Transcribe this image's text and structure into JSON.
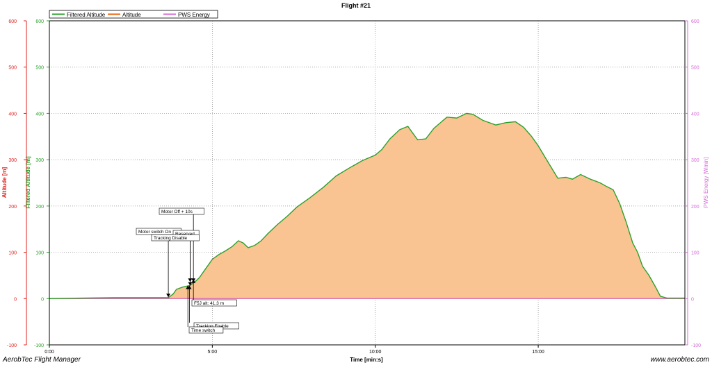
{
  "footer": {
    "left": "AerobTec Flight Manager",
    "right": "www.aerobtec.com"
  },
  "chart_data": {
    "type": "area",
    "title": "Flight #21",
    "xlabel": "Time [min:s]",
    "ylabel_left_outer": "Altitude [m]",
    "ylabel_left_inner": "Filtered Altitude [m]",
    "ylabel_right": "PWS Energy [Wmin]",
    "xlim": [
      0,
      19.5
    ],
    "ylim": [
      -100,
      600
    ],
    "x_ticks": [
      0,
      5,
      10,
      15
    ],
    "x_tick_labels": [
      "0:00",
      "5:00",
      "10:00",
      "15:00"
    ],
    "y_ticks": [
      -100,
      0,
      100,
      200,
      300,
      400,
      500,
      600
    ],
    "y_tick_labels": [
      "-100",
      "0",
      "100",
      "200",
      "300",
      "400",
      "500",
      "600"
    ],
    "grid": true,
    "legend": "top-left",
    "colors": {
      "filtered_altitude": "#2ca02c",
      "altitude": "#e8620a",
      "area_fill": "#f9c491",
      "pws_energy": "#d46bd4",
      "altitude_axis": "#e0201c",
      "filtered_axis": "#2ca02c",
      "pws_axis": "#d46bd4"
    },
    "series": [
      {
        "name": "Filtered Altitude",
        "x": [
          0,
          1,
          2,
          3,
          3.65,
          3.8,
          3.9,
          4.1,
          4.3,
          4.45,
          4.6,
          4.75,
          4.9,
          5.0,
          5.2,
          5.4,
          5.6,
          5.8,
          5.95,
          6.1,
          6.3,
          6.5,
          6.7,
          7.0,
          7.3,
          7.6,
          8.0,
          8.4,
          8.8,
          9.2,
          9.6,
          10.0,
          10.2,
          10.45,
          10.75,
          11.0,
          11.3,
          11.55,
          11.8,
          12.2,
          12.5,
          12.8,
          13.0,
          13.3,
          13.7,
          14.0,
          14.3,
          14.55,
          14.8,
          15.0,
          15.3,
          15.6,
          15.85,
          16.05,
          16.3,
          16.6,
          16.9,
          17.1,
          17.3,
          17.5,
          17.7,
          17.9,
          18.05,
          18.2,
          18.4,
          18.6,
          18.75,
          18.95,
          19.2,
          19.5
        ],
        "values": [
          0,
          1,
          2,
          2,
          2,
          10,
          20,
          25,
          28,
          35,
          45,
          60,
          75,
          85,
          95,
          103,
          112,
          125,
          120,
          110,
          115,
          125,
          140,
          160,
          178,
          198,
          218,
          240,
          265,
          282,
          298,
          310,
          322,
          345,
          365,
          372,
          343,
          345,
          368,
          392,
          390,
          400,
          398,
          385,
          375,
          380,
          382,
          370,
          350,
          330,
          295,
          260,
          262,
          258,
          268,
          258,
          250,
          242,
          235,
          205,
          165,
          120,
          100,
          70,
          50,
          25,
          5,
          1,
          1,
          1
        ]
      },
      {
        "name": "Altitude",
        "x": [
          0,
          19.5
        ],
        "values": [
          0,
          0
        ]
      },
      {
        "name": "PWS Energy",
        "x": [
          0,
          19.5
        ],
        "values": [
          0,
          0
        ]
      }
    ],
    "annotations": [
      {
        "text": "Motor Off + 10s",
        "x": 4.42,
        "y": 36
      },
      {
        "text": "Motor switch On",
        "x": 3.65,
        "y": 3
      },
      {
        "text": "Reserved",
        "x": 4.32,
        "y": 36
      },
      {
        "text": "Tracking Disable",
        "x": 4.32,
        "y": 28
      },
      {
        "text": "F5J alt: 41.3 m",
        "x": 4.42,
        "y": 41.3
      },
      {
        "text": "Tracking Enable",
        "x": 4.3,
        "y": 28
      },
      {
        "text": "Time switch",
        "x": 4.25,
        "y": 28
      }
    ]
  }
}
